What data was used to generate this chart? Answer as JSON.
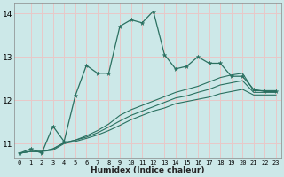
{
  "xlabel": "Humidex (Indice chaleur)",
  "ylabel": "",
  "xlim": [
    -0.5,
    23.5
  ],
  "ylim": [
    10.65,
    14.25
  ],
  "yticks": [
    11,
    12,
    13,
    14
  ],
  "xticks": [
    0,
    1,
    2,
    3,
    4,
    5,
    6,
    7,
    8,
    9,
    10,
    11,
    12,
    13,
    14,
    15,
    16,
    17,
    18,
    19,
    20,
    21,
    22,
    23
  ],
  "bg_color": "#cce8e8",
  "grid_color": "#e8c8c8",
  "line_color": "#2a7060",
  "series1_x": [
    0,
    1,
    2,
    3,
    4,
    5,
    6,
    7,
    8,
    9,
    10,
    11,
    12,
    13,
    14,
    15,
    16,
    17,
    18,
    19,
    20,
    21,
    22,
    23
  ],
  "series1_y": [
    10.78,
    10.88,
    10.78,
    11.4,
    11.05,
    12.1,
    12.8,
    12.62,
    12.62,
    13.7,
    13.85,
    13.78,
    14.05,
    13.05,
    12.72,
    12.78,
    13.0,
    12.85,
    12.85,
    12.55,
    12.55,
    12.25,
    12.2,
    12.2
  ],
  "series2_x": [
    0,
    1,
    2,
    3,
    4,
    5,
    6,
    7,
    8,
    9,
    10,
    11,
    12,
    13,
    14,
    15,
    16,
    17,
    18,
    19,
    20,
    21,
    22,
    23
  ],
  "series2_y": [
    10.78,
    10.82,
    10.82,
    10.88,
    11.02,
    11.08,
    11.18,
    11.3,
    11.45,
    11.65,
    11.78,
    11.88,
    11.98,
    12.08,
    12.18,
    12.25,
    12.32,
    12.42,
    12.52,
    12.58,
    12.62,
    12.22,
    12.22,
    12.22
  ],
  "series3_x": [
    0,
    1,
    2,
    3,
    4,
    5,
    6,
    7,
    8,
    9,
    10,
    11,
    12,
    13,
    14,
    15,
    16,
    17,
    18,
    19,
    20,
    21,
    22,
    23
  ],
  "series3_y": [
    10.78,
    10.82,
    10.82,
    10.88,
    11.02,
    11.08,
    11.15,
    11.25,
    11.38,
    11.52,
    11.65,
    11.75,
    11.85,
    11.95,
    12.05,
    12.1,
    12.18,
    12.25,
    12.35,
    12.4,
    12.45,
    12.18,
    12.18,
    12.18
  ],
  "series4_x": [
    0,
    1,
    2,
    3,
    4,
    5,
    6,
    7,
    8,
    9,
    10,
    11,
    12,
    13,
    14,
    15,
    16,
    17,
    18,
    19,
    20,
    21,
    22,
    23
  ],
  "series4_y": [
    10.78,
    10.82,
    10.82,
    10.85,
    11.0,
    11.05,
    11.12,
    11.2,
    11.3,
    11.42,
    11.55,
    11.65,
    11.75,
    11.82,
    11.92,
    11.97,
    12.02,
    12.07,
    12.15,
    12.2,
    12.25,
    12.12,
    12.12,
    12.12
  ]
}
